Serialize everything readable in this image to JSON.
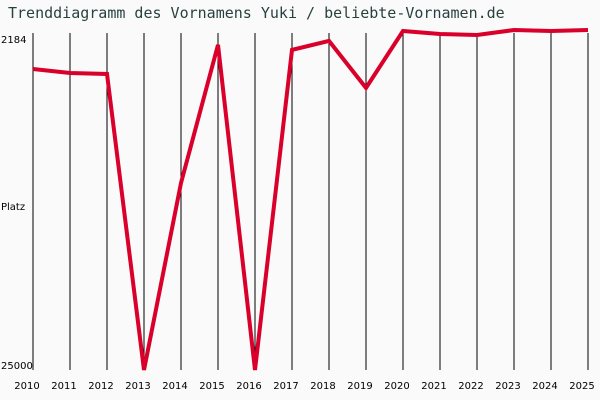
{
  "title": "Trenddiagramm des Vornamens Yuki / beliebte-Vornamen.de",
  "colors": {
    "background": "#fafafa",
    "line": "#d9002b",
    "grid": "#000000",
    "title": "#27423e"
  },
  "chart_data": {
    "type": "line",
    "title": "Trenddiagramm des Vornamens Yuki / beliebte-Vornamen.de",
    "xlabel": "",
    "ylabel": "Platz",
    "y_tick_labels": [
      "2184",
      "25000"
    ],
    "ylim": [
      2184,
      25000
    ],
    "y_inverted": true,
    "grid": "vertical",
    "categories": [
      "2010",
      "2011",
      "2012",
      "2013",
      "2014",
      "2015",
      "2016",
      "2017",
      "2018",
      "2019",
      "2020",
      "2021",
      "2022",
      "2023",
      "2024",
      "2025"
    ],
    "series": [
      {
        "name": "Yuki",
        "values": [
          4620,
          4890,
          4960,
          25000,
          12340,
          2990,
          25000,
          3330,
          2720,
          5900,
          2050,
          2250,
          2320,
          1980,
          2050,
          1980
        ]
      }
    ]
  },
  "axis": {
    "y_top": "2184",
    "y_bottom": "25000",
    "y_label": "Platz"
  }
}
